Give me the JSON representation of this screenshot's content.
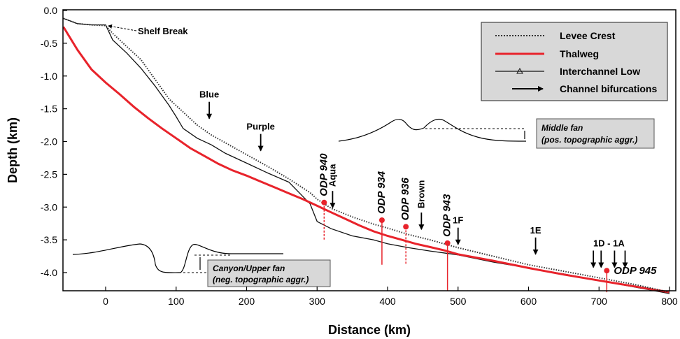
{
  "chart_data": {
    "type": "line",
    "xlabel": "Distance (km)",
    "ylabel": "Depth (km)",
    "xlim": [
      -60,
      805
    ],
    "ylim": [
      -4.3,
      0.0
    ],
    "x_ticks": [
      "0",
      "100",
      "200",
      "300",
      "400",
      "500",
      "600",
      "700",
      "800"
    ],
    "y_ticks": [
      "0.0",
      "-0.5",
      "-1.0",
      "-1.5",
      "-2.0",
      "-2.5",
      "-3.0",
      "-3.5",
      "-4.0"
    ],
    "colors": {
      "levee": "#333333",
      "thalweg": "#e8232b",
      "interchannel": "#111111",
      "odp": "#e8232b"
    },
    "legend_position": "top-right",
    "legend": {
      "levee": "Levee Crest",
      "thalweg": "Thalweg",
      "interchannel": "Interchannel Low",
      "bifurcation": "Channel bifurcations"
    },
    "series": [
      {
        "name": "Levee Crest",
        "style": "dotted",
        "x": [
          -60,
          -40,
          -20,
          0,
          10,
          30,
          50,
          70,
          90,
          110,
          130,
          150,
          170,
          200,
          230,
          260,
          290,
          300,
          320,
          350,
          380,
          400,
          430,
          460,
          500,
          550,
          600,
          650,
          700,
          750,
          800
        ],
        "y": [
          -0.12,
          -0.2,
          -0.22,
          -0.23,
          -0.35,
          -0.55,
          -0.75,
          -1.05,
          -1.35,
          -1.55,
          -1.75,
          -1.9,
          -2.02,
          -2.2,
          -2.38,
          -2.57,
          -2.78,
          -2.88,
          -3.02,
          -3.15,
          -3.26,
          -3.32,
          -3.42,
          -3.5,
          -3.62,
          -3.75,
          -3.88,
          -3.98,
          -4.08,
          -4.18,
          -4.3
        ]
      },
      {
        "name": "Thalweg",
        "style": "solid",
        "x": [
          -60,
          -40,
          -20,
          0,
          20,
          40,
          60,
          80,
          100,
          120,
          140,
          160,
          180,
          200,
          220,
          240,
          260,
          280,
          300,
          320,
          340,
          360,
          380,
          400,
          420,
          440,
          460,
          480,
          500,
          550,
          600,
          650,
          700,
          750,
          800
        ],
        "y": [
          -0.25,
          -0.6,
          -0.9,
          -1.1,
          -1.28,
          -1.47,
          -1.64,
          -1.8,
          -1.95,
          -2.1,
          -2.22,
          -2.34,
          -2.44,
          -2.52,
          -2.61,
          -2.7,
          -2.79,
          -2.88,
          -2.98,
          -3.08,
          -3.18,
          -3.28,
          -3.37,
          -3.44,
          -3.5,
          -3.56,
          -3.61,
          -3.66,
          -3.72,
          -3.82,
          -3.93,
          -4.03,
          -4.12,
          -4.21,
          -4.3
        ]
      },
      {
        "name": "Interchannel Low",
        "style": "solid-thin",
        "x": [
          -60,
          -40,
          -20,
          0,
          10,
          30,
          50,
          70,
          90,
          100,
          110,
          130,
          150,
          170,
          200,
          230,
          260,
          290,
          300,
          320,
          350,
          380,
          400,
          430,
          460,
          500,
          550,
          600,
          650,
          700,
          750,
          800
        ],
        "y": [
          -0.12,
          -0.2,
          -0.22,
          -0.22,
          -0.45,
          -0.65,
          -0.88,
          -1.15,
          -1.45,
          -1.62,
          -1.8,
          -1.95,
          -2.05,
          -2.18,
          -2.33,
          -2.48,
          -2.62,
          -2.95,
          -3.22,
          -3.33,
          -3.44,
          -3.5,
          -3.56,
          -3.62,
          -3.67,
          -3.73,
          -3.84,
          -3.93,
          -4.02,
          -4.12,
          -4.22,
          -4.32
        ]
      }
    ],
    "odp_sites": [
      {
        "label": "ODP 940",
        "x": 310,
        "y_top": -2.93,
        "y_bottom": -3.5,
        "dashed": true
      },
      {
        "label": "ODP 934",
        "x": 392,
        "y_top": -3.2,
        "y_bottom": -3.88,
        "dashed": false
      },
      {
        "label": "ODP 936",
        "x": 426,
        "y_top": -3.3,
        "y_bottom": -3.88,
        "dashed": true
      },
      {
        "label": "ODP 943",
        "x": 485,
        "y_top": -3.55,
        "y_bottom": -4.28,
        "dashed": false
      },
      {
        "label": "ODP 945",
        "x": 711,
        "y_top": -3.97,
        "y_bottom": -4.3,
        "dashed": false
      }
    ],
    "bifurcations": [
      {
        "label": "Blue",
        "x": 147,
        "y": -1.65
      },
      {
        "label": "Purple",
        "x": 220,
        "y": -2.14
      },
      {
        "label": "Aqua",
        "x": 322,
        "y": -3.01
      },
      {
        "label": "Brown",
        "x": 448,
        "y": -3.34
      },
      {
        "label": "1F",
        "x": 500,
        "y": -3.57
      },
      {
        "label": "1E",
        "x": 610,
        "y": -3.72
      },
      {
        "label": "1D - 1A",
        "x": 714,
        "y": -3.92
      }
    ],
    "annotations": {
      "shelf_break": "Shelf Break",
      "middle_fan_1": "Middle fan",
      "middle_fan_2": "(pos. topographic aggr.)",
      "canyon_1": "Canyon/Upper fan",
      "canyon_2": "(neg. topographic aggr.)"
    }
  }
}
